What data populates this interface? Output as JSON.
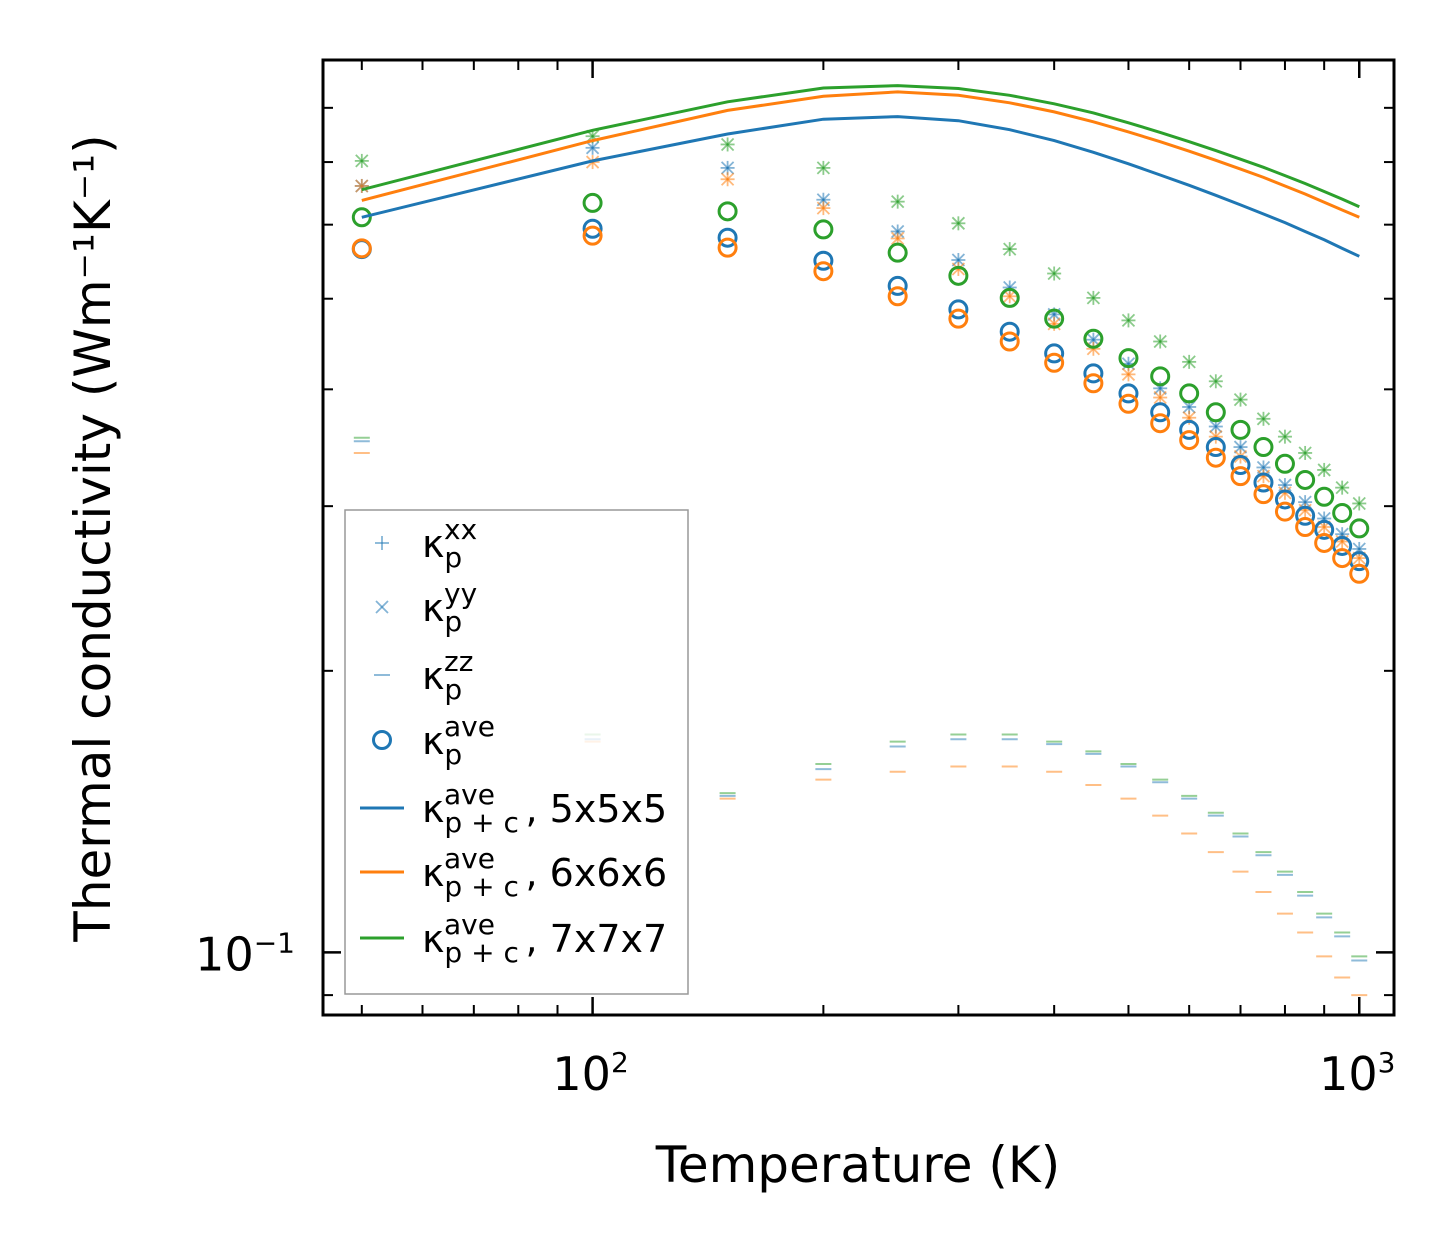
{
  "chart_data": {
    "type": "scatter",
    "title": "",
    "xlabel": "Temperature (K)",
    "ylabel": "Thermal conductivity (Wm⁻¹K⁻¹)",
    "xscale": "log",
    "yscale": "log",
    "xlim": [
      44.5,
      1110
    ],
    "ylim": [
      0.0857,
      0.9
    ],
    "x_tick_labels": [
      {
        "value": 100,
        "base": "10",
        "exp": "2"
      },
      {
        "value": 1000,
        "base": "10",
        "exp": "3"
      }
    ],
    "y_tick_labels": [
      {
        "value": 0.1,
        "base": "10",
        "exp": "−1"
      }
    ],
    "x": [
      50,
      100,
      150,
      200,
      250,
      300,
      350,
      400,
      450,
      500,
      550,
      600,
      650,
      700,
      750,
      800,
      850,
      900,
      950,
      1000
    ],
    "colors": {
      "5x5x5": "#1f77b4",
      "6x6x6": "#ff7f0e",
      "7x7x7": "#2ca02c"
    },
    "series": [
      {
        "name": "k_p^xx 5x5x5",
        "kind": "xx",
        "color": "#1f77b4",
        "values": [
          0.66,
          0.725,
          0.69,
          0.638,
          0.59,
          0.55,
          0.514,
          0.481,
          0.452,
          0.426,
          0.401,
          0.383,
          0.365,
          0.347,
          0.33,
          0.316,
          0.303,
          0.291,
          0.28,
          0.27
        ]
      },
      {
        "name": "k_p^xx 6x6x6",
        "kind": "xx",
        "color": "#ff7f0e",
        "values": [
          0.66,
          0.7,
          0.671,
          0.625,
          0.58,
          0.538,
          0.503,
          0.47,
          0.442,
          0.415,
          0.392,
          0.373,
          0.356,
          0.339,
          0.323,
          0.31,
          0.297,
          0.285,
          0.275,
          0.264
        ]
      },
      {
        "name": "k_p^xx 7x7x7",
        "kind": "xx",
        "color": "#2ca02c",
        "values": [
          0.702,
          0.746,
          0.731,
          0.69,
          0.635,
          0.602,
          0.565,
          0.532,
          0.501,
          0.474,
          0.45,
          0.428,
          0.408,
          0.39,
          0.372,
          0.356,
          0.342,
          0.328,
          0.314,
          0.302
        ]
      },
      {
        "name": "k_p^yy 5x5x5",
        "kind": "yy",
        "color": "#1f77b4",
        "values": [
          0.66,
          0.725,
          0.69,
          0.638,
          0.59,
          0.55,
          0.514,
          0.481,
          0.452,
          0.426,
          0.401,
          0.383,
          0.365,
          0.347,
          0.33,
          0.316,
          0.303,
          0.291,
          0.28,
          0.27
        ]
      },
      {
        "name": "k_p^yy 6x6x6",
        "kind": "yy",
        "color": "#ff7f0e",
        "values": [
          0.66,
          0.7,
          0.671,
          0.625,
          0.58,
          0.538,
          0.503,
          0.47,
          0.442,
          0.415,
          0.392,
          0.373,
          0.356,
          0.339,
          0.323,
          0.31,
          0.297,
          0.285,
          0.275,
          0.264
        ]
      },
      {
        "name": "k_p^yy 7x7x7",
        "kind": "yy",
        "color": "#2ca02c",
        "values": [
          0.702,
          0.746,
          0.731,
          0.69,
          0.635,
          0.602,
          0.565,
          0.532,
          0.501,
          0.474,
          0.45,
          0.428,
          0.408,
          0.39,
          0.372,
          0.356,
          0.342,
          0.328,
          0.314,
          0.302
        ]
      },
      {
        "name": "k_p^zz 5x5x5",
        "kind": "zz",
        "color": "#1f77b4",
        "values": [
          0.352,
          0.169,
          0.147,
          0.157,
          0.166,
          0.169,
          0.169,
          0.167,
          0.163,
          0.158,
          0.152,
          0.146,
          0.14,
          0.133,
          0.127,
          0.121,
          0.115,
          0.109,
          0.104,
          0.098
        ]
      },
      {
        "name": "k_p^zz 6x6x6",
        "kind": "zz",
        "color": "#ff7f0e",
        "values": [
          0.342,
          0.168,
          0.146,
          0.153,
          0.156,
          0.158,
          0.158,
          0.156,
          0.151,
          0.146,
          0.14,
          0.134,
          0.128,
          0.122,
          0.116,
          0.11,
          0.105,
          0.099,
          0.094,
          0.09
        ]
      },
      {
        "name": "k_p^zz 7x7x7",
        "kind": "zz",
        "color": "#2ca02c",
        "values": [
          0.355,
          0.171,
          0.148,
          0.159,
          0.168,
          0.171,
          0.171,
          0.168,
          0.164,
          0.159,
          0.153,
          0.147,
          0.141,
          0.134,
          0.128,
          0.122,
          0.116,
          0.11,
          0.105,
          0.099
        ]
      },
      {
        "name": "k_p^ave 5x5x5",
        "kind": "ave",
        "color": "#1f77b4",
        "values": [
          0.565,
          0.594,
          0.581,
          0.549,
          0.516,
          0.487,
          0.461,
          0.437,
          0.416,
          0.396,
          0.378,
          0.362,
          0.347,
          0.332,
          0.318,
          0.305,
          0.293,
          0.283,
          0.272,
          0.262
        ]
      },
      {
        "name": "k_p^ave 6x6x6",
        "kind": "ave",
        "color": "#ff7f0e",
        "values": [
          0.566,
          0.584,
          0.567,
          0.535,
          0.503,
          0.476,
          0.45,
          0.427,
          0.406,
          0.386,
          0.368,
          0.353,
          0.338,
          0.323,
          0.309,
          0.296,
          0.285,
          0.274,
          0.264,
          0.254
        ]
      },
      {
        "name": "k_p^ave 7x7x7",
        "kind": "ave",
        "color": "#2ca02c",
        "values": [
          0.611,
          0.633,
          0.62,
          0.593,
          0.56,
          0.529,
          0.501,
          0.476,
          0.453,
          0.432,
          0.413,
          0.396,
          0.378,
          0.362,
          0.347,
          0.333,
          0.32,
          0.307,
          0.295,
          0.284
        ]
      },
      {
        "name": "k_p+c^ave 5x5x5",
        "kind": "line",
        "color": "#1f77b4",
        "values": [
          0.611,
          0.702,
          0.75,
          0.778,
          0.783,
          0.775,
          0.758,
          0.738,
          0.717,
          0.697,
          0.678,
          0.661,
          0.645,
          0.63,
          0.616,
          0.603,
          0.59,
          0.578,
          0.566,
          0.555
        ]
      },
      {
        "name": "k_p+c^ave 6x6x6",
        "kind": "line",
        "color": "#ff7f0e",
        "values": [
          0.637,
          0.738,
          0.795,
          0.823,
          0.832,
          0.825,
          0.81,
          0.792,
          0.773,
          0.754,
          0.736,
          0.719,
          0.703,
          0.688,
          0.674,
          0.66,
          0.647,
          0.634,
          0.622,
          0.611
        ]
      },
      {
        "name": "k_p+c^ave 7x7x7",
        "kind": "line",
        "color": "#2ca02c",
        "values": [
          0.654,
          0.757,
          0.812,
          0.84,
          0.845,
          0.839,
          0.825,
          0.808,
          0.79,
          0.771,
          0.753,
          0.736,
          0.72,
          0.705,
          0.691,
          0.677,
          0.664,
          0.651,
          0.639,
          0.627
        ]
      }
    ],
    "legend": {
      "position": "lower-left",
      "entries": [
        {
          "marker": "xx",
          "label": "κ",
          "sub": "p",
          "sup": "xx",
          "suffix": ""
        },
        {
          "marker": "yy",
          "label": "κ",
          "sub": "p",
          "sup": "yy",
          "suffix": ""
        },
        {
          "marker": "zz",
          "label": "κ",
          "sub": "p",
          "sup": "zz",
          "suffix": ""
        },
        {
          "marker": "ave",
          "label": "κ",
          "sub": "p",
          "sup": "ave",
          "suffix": ""
        },
        {
          "marker": "line",
          "color": "#1f77b4",
          "label": "κ",
          "sub": "p + c",
          "sup": "ave",
          "suffix": ", 5x5x5"
        },
        {
          "marker": "line",
          "color": "#ff7f0e",
          "label": "κ",
          "sub": "p + c",
          "sup": "ave",
          "suffix": ", 6x6x6"
        },
        {
          "marker": "line",
          "color": "#2ca02c",
          "label": "κ",
          "sub": "p + c",
          "sup": "ave",
          "suffix": ", 7x7x7"
        }
      ]
    }
  }
}
